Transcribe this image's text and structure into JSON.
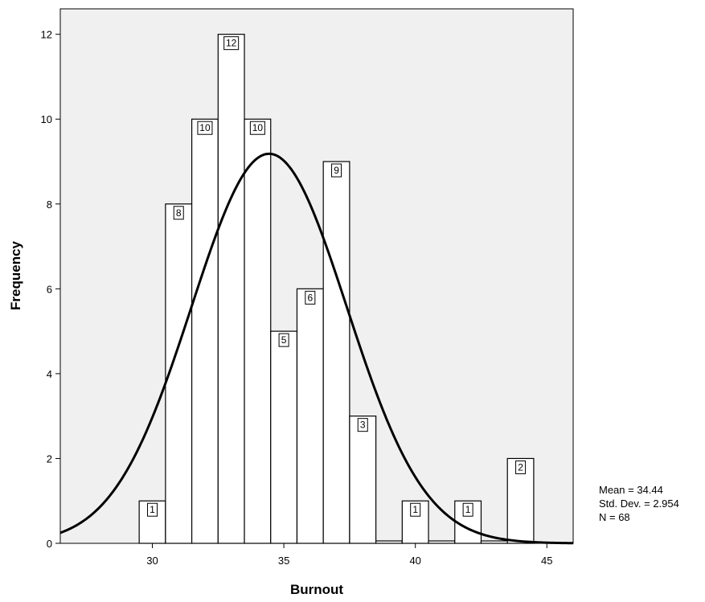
{
  "chart_data": {
    "type": "bar",
    "xlabel": "Burnout",
    "ylabel": "Frequency",
    "xlim": [
      26.5,
      46.0
    ],
    "ylim": [
      0,
      12.6
    ],
    "x_ticks": [
      30,
      35,
      40,
      45
    ],
    "y_ticks": [
      0,
      2,
      4,
      6,
      8,
      10,
      12
    ],
    "bin_width": 1,
    "grid": false,
    "bins": [
      {
        "x": 30,
        "count": 1
      },
      {
        "x": 31,
        "count": 8
      },
      {
        "x": 32,
        "count": 10
      },
      {
        "x": 33,
        "count": 12
      },
      {
        "x": 34,
        "count": 10
      },
      {
        "x": 35,
        "count": 5
      },
      {
        "x": 36,
        "count": 6
      },
      {
        "x": 37,
        "count": 9
      },
      {
        "x": 38,
        "count": 3
      },
      {
        "x": 39,
        "count": 0
      },
      {
        "x": 40,
        "count": 1
      },
      {
        "x": 41,
        "count": 0
      },
      {
        "x": 42,
        "count": 1
      },
      {
        "x": 43,
        "count": 0
      },
      {
        "x": 44,
        "count": 2
      }
    ],
    "normal_curve": {
      "mean": 34.44,
      "std": 2.954,
      "n": 68,
      "color": "#000000"
    },
    "stats": {
      "mean_text": "Mean = 34.44",
      "std_text": "Std. Dev. = 2.954",
      "n_text": "N = 68"
    },
    "colors": {
      "bar_fill": "#ffffff",
      "bar_stroke": "#000000",
      "plot_background": "#f0f0f0"
    }
  }
}
